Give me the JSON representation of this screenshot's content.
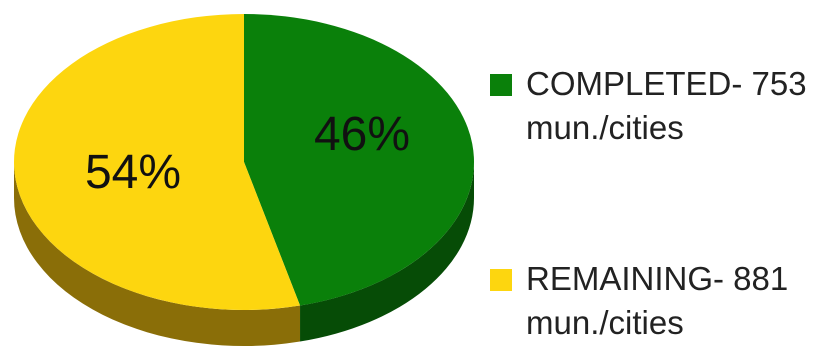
{
  "chart_data": {
    "type": "pie",
    "title": "",
    "slices": [
      {
        "label": "COMPLETED- 753 mun./cities",
        "value": 753,
        "percent_label": "46%",
        "color": "#0a800a",
        "side_color": "#064c06"
      },
      {
        "label": "REMAINING- 881 mun./cities",
        "value": 881,
        "percent_label": "54%",
        "color": "#fdd60f",
        "side_color": "#8a6e08"
      }
    ],
    "legend_position": "right",
    "three_d": true
  },
  "legend": {
    "items": [
      {
        "line1": "COMPLETED- 753",
        "line2": "mun./cities",
        "color": "#0a800a"
      },
      {
        "line1": "REMAINING- 881",
        "line2": "mun./cities",
        "color": "#fdd60f"
      }
    ]
  }
}
